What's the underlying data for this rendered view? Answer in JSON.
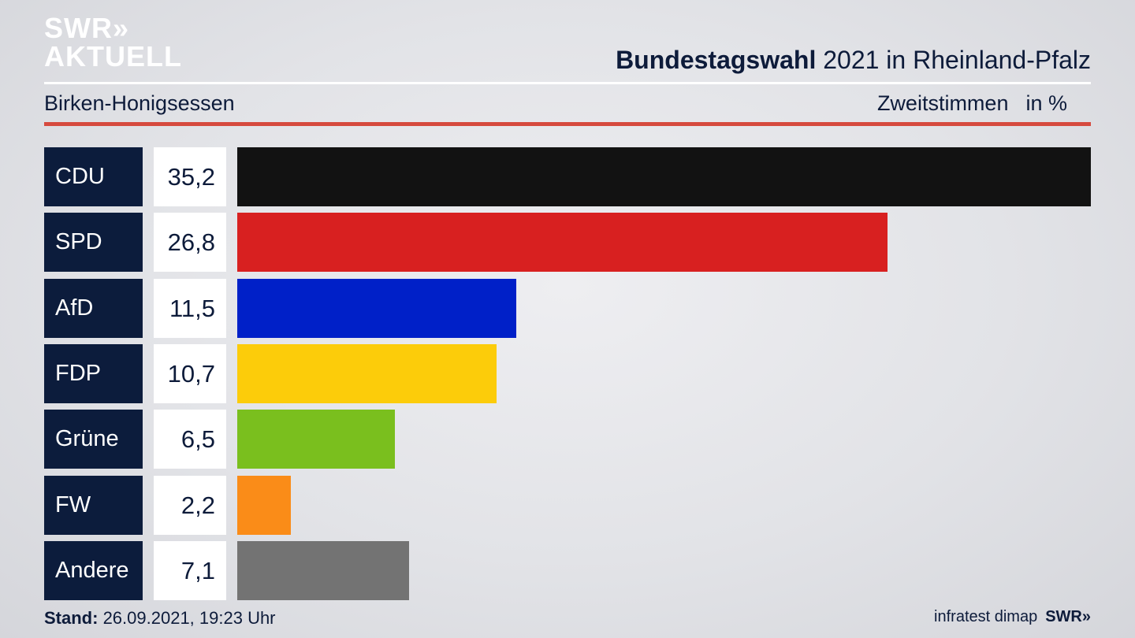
{
  "header": {
    "logo_line1": "SWR»",
    "logo_line2": "AKTUELL",
    "title_bold": "Bundestagswahl",
    "title_rest": " 2021 in Rheinland-Pfalz"
  },
  "subheader": {
    "location": "Birken-Honigsessen",
    "vote_type": "Zweitstimmen",
    "unit": "in %"
  },
  "footer": {
    "stand_label": "Stand:",
    "stand_value": " 26.09.2021, 19:23 Uhr",
    "source": "infratest dimap",
    "brand": "SWR»"
  },
  "colors": {
    "accent_red": "#d64a3e",
    "label_bg": "#0c1c3c"
  },
  "chart_data": {
    "type": "bar",
    "orientation": "horizontal",
    "title": "Bundestagswahl 2021 in Rheinland-Pfalz",
    "subtitle": "Birken-Honigsessen",
    "ylabel": "Zweitstimmen in %",
    "categories": [
      "CDU",
      "SPD",
      "AfD",
      "FDP",
      "Grüne",
      "FW",
      "Andere"
    ],
    "values": [
      35.2,
      26.8,
      11.5,
      10.7,
      6.5,
      2.2,
      7.1
    ],
    "value_labels": [
      "35,2",
      "26,8",
      "11,5",
      "10,7",
      "6,5",
      "2,2",
      "7,1"
    ],
    "colors": [
      "#121212",
      "#d82020",
      "#0020c8",
      "#fccc0a",
      "#7abf1e",
      "#fa8c18",
      "#737373"
    ],
    "xlim": [
      0,
      35.2
    ],
    "grid": false,
    "legend": "none"
  }
}
